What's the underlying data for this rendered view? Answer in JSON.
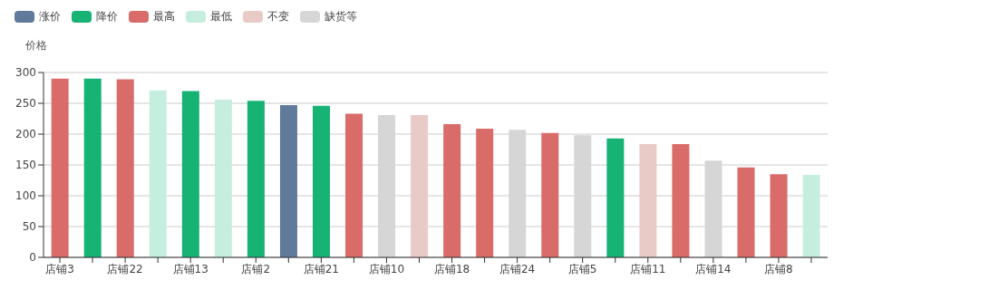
{
  "chart_data": {
    "type": "bar",
    "ylabel": "价格",
    "categories": [
      "店铺3",
      null,
      "店铺22",
      null,
      "店铺13",
      null,
      "店铺2",
      null,
      "店铺21",
      null,
      "店铺10",
      null,
      "店铺18",
      null,
      "店铺24",
      null,
      "店铺5",
      null,
      "店铺11",
      null,
      "店铺14",
      null,
      "店铺8",
      null
    ],
    "stacked": true,
    "series": [
      {
        "name": "涨价",
        "color": "#5f7a9b",
        "values": [
          null,
          null,
          null,
          null,
          null,
          null,
          null,
          247,
          null,
          null,
          null,
          null,
          null,
          null,
          null,
          null,
          null,
          null,
          null,
          null,
          null,
          null,
          null,
          null
        ]
      },
      {
        "name": "降价",
        "color": "#16b374",
        "values": [
          null,
          290,
          null,
          null,
          270,
          null,
          254,
          null,
          246,
          null,
          null,
          null,
          null,
          null,
          null,
          null,
          null,
          193,
          null,
          null,
          null,
          null,
          null,
          null
        ]
      },
      {
        "name": "最高",
        "color": "#d96b69",
        "values": [
          290,
          null,
          289,
          null,
          null,
          null,
          null,
          null,
          null,
          233,
          null,
          null,
          216,
          209,
          null,
          202,
          null,
          null,
          null,
          184,
          null,
          146,
          135,
          null
        ]
      },
      {
        "name": "最低",
        "color": "#c6eedf",
        "values": [
          null,
          null,
          null,
          271,
          null,
          256,
          null,
          null,
          null,
          null,
          null,
          null,
          null,
          null,
          null,
          null,
          null,
          null,
          null,
          null,
          null,
          null,
          null,
          134
        ]
      },
      {
        "name": "不变",
        "color": "#e8cbc6",
        "values": [
          null,
          null,
          null,
          null,
          null,
          null,
          null,
          null,
          null,
          null,
          null,
          231,
          null,
          null,
          null,
          null,
          null,
          null,
          184,
          null,
          null,
          null,
          null,
          null
        ]
      },
      {
        "name": "缺货等",
        "color": "#d6d6d6",
        "values": [
          null,
          null,
          null,
          null,
          null,
          null,
          null,
          null,
          null,
          null,
          231,
          null,
          null,
          null,
          207,
          null,
          198,
          null,
          null,
          null,
          157,
          null,
          null,
          null
        ]
      }
    ],
    "ylim": [
      0,
      300
    ],
    "yticks": [
      0,
      50,
      100,
      150,
      200,
      250,
      300
    ],
    "grid": "y",
    "legend": "top left"
  }
}
